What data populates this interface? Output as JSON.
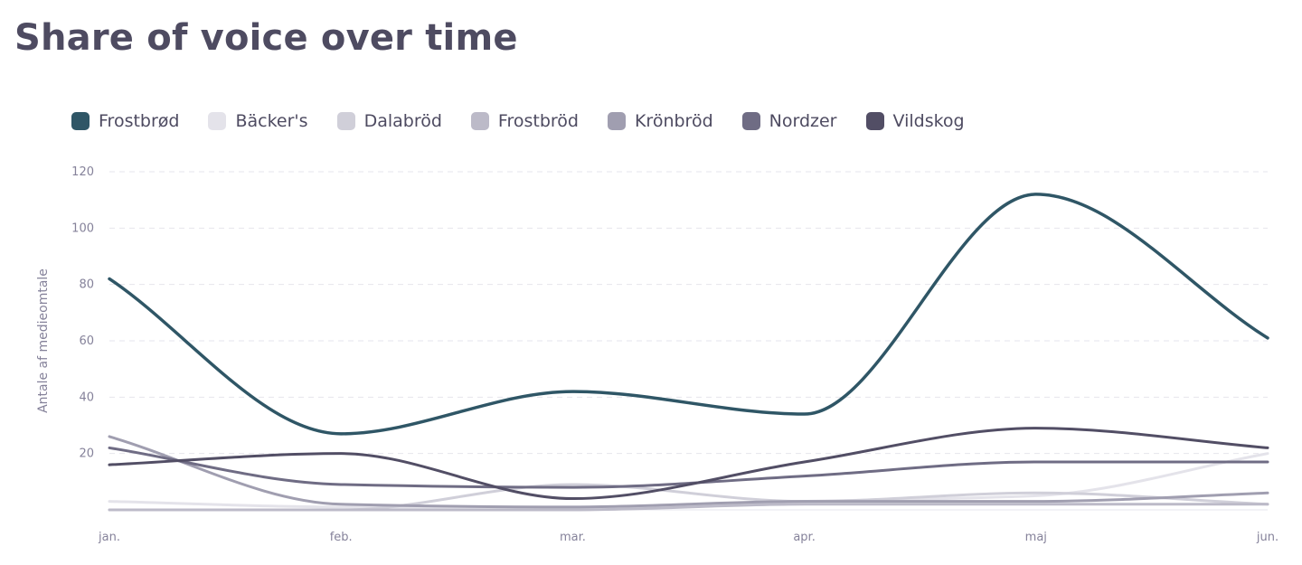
{
  "header": {
    "title": "Share of voice over time"
  },
  "chart_data": {
    "type": "line",
    "title": "Share of voice over time",
    "xlabel": "",
    "ylabel": "Antale af medieomtale",
    "categories": [
      "jan.",
      "feb.",
      "mar.",
      "apr.",
      "maj",
      "jun."
    ],
    "ylim": [
      0,
      120
    ],
    "yticks": [
      20,
      40,
      60,
      80,
      100,
      120
    ],
    "grid": true,
    "grid_style": "dashed",
    "legend_position": "top",
    "curve": "smooth",
    "series": [
      {
        "name": "Frostbrød",
        "color": "#2f5666",
        "values": [
          82,
          27,
          42,
          34,
          112,
          61
        ]
      },
      {
        "name": "Bäcker's",
        "color": "#e4e3ea",
        "values": [
          3,
          1,
          1,
          3,
          5,
          20
        ]
      },
      {
        "name": "Dalabröd",
        "color": "#d0cfd9",
        "values": [
          0,
          0,
          9,
          3,
          6,
          2
        ]
      },
      {
        "name": "Frostbröd",
        "color": "#bcbac8",
        "values": [
          0,
          0,
          0,
          2,
          2,
          2
        ]
      },
      {
        "name": "Krönbröd",
        "color": "#a09eb0",
        "values": [
          26,
          2,
          1,
          3,
          3,
          6
        ]
      },
      {
        "name": "Nordzer",
        "color": "#6f6c84",
        "values": [
          22,
          9,
          8,
          12,
          17,
          17
        ]
      },
      {
        "name": "Vildskog",
        "color": "#524e65",
        "values": [
          16,
          20,
          4,
          17,
          29,
          22
        ]
      }
    ]
  }
}
